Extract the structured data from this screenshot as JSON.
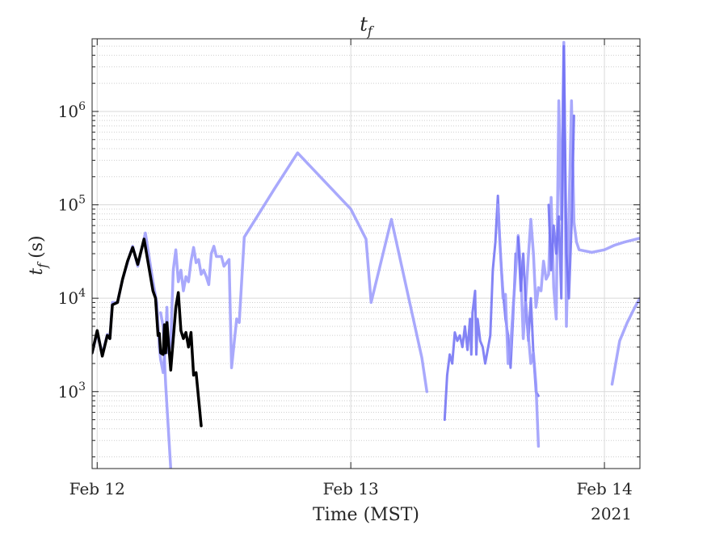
{
  "chart_data": {
    "type": "line",
    "title": "t",
    "title_subscript": "f",
    "xlabel": "Time (MST)",
    "ylabel_symbol": "t",
    "ylabel_subscript": "f",
    "ylabel_unit": "(s)",
    "x_ticks": [
      {
        "value": 0.0,
        "label": "Feb 12"
      },
      {
        "value": 1.0,
        "label": "Feb 13"
      },
      {
        "value": 2.0,
        "label": "Feb 14"
      }
    ],
    "x_tick_year": "2021",
    "xlim": [
      -0.02,
      2.14
    ],
    "y_scale": "log",
    "y_ticks": [
      {
        "value": 1000,
        "base": "10",
        "exp": "3"
      },
      {
        "value": 10000,
        "base": "10",
        "exp": "4"
      },
      {
        "value": 100000,
        "base": "10",
        "exp": "5"
      },
      {
        "value": 1000000,
        "base": "10",
        "exp": "6"
      }
    ],
    "ylim": [
      150,
      6000000
    ],
    "grid": true,
    "minor_grid": true,
    "colors": {
      "light_series": "#9a9afb",
      "medium_series": "#6f6ff3",
      "highlight_series": "#000000",
      "grid": "#d9d9d9",
      "axis": "#262626"
    },
    "series": [
      {
        "style": "light",
        "points": [
          [
            -0.02,
            2600
          ],
          [
            0.0,
            4300
          ],
          [
            0.02,
            2500
          ],
          [
            0.04,
            4100
          ],
          [
            0.05,
            3700
          ],
          [
            0.06,
            9000
          ],
          [
            0.08,
            9000
          ],
          [
            0.1,
            16000
          ],
          [
            0.13,
            30000
          ],
          [
            0.14,
            36000
          ],
          [
            0.16,
            22000
          ],
          [
            0.19,
            50000
          ],
          [
            0.22,
            15000
          ],
          [
            0.235,
            9000
          ],
          [
            0.245,
            3000
          ],
          [
            0.25,
            2200
          ],
          [
            0.26,
            1600
          ],
          [
            0.27,
            3500
          ],
          [
            0.275,
            8000
          ],
          [
            0.28,
            2600
          ],
          [
            0.29,
            3200
          ],
          [
            0.3,
            20000
          ],
          [
            0.31,
            33000
          ],
          [
            0.32,
            15000
          ],
          [
            0.33,
            20000
          ],
          [
            0.34,
            12000
          ],
          [
            0.35,
            17000
          ],
          [
            0.36,
            15000
          ],
          [
            0.37,
            25000
          ],
          [
            0.38,
            35000
          ],
          [
            0.39,
            24000
          ],
          [
            0.4,
            26000
          ],
          [
            0.41,
            18000
          ],
          [
            0.42,
            20000
          ],
          [
            0.43,
            17000
          ],
          [
            0.44,
            14000
          ],
          [
            0.45,
            30000
          ],
          [
            0.46,
            36000
          ],
          [
            0.47,
            28000
          ],
          [
            0.49,
            28000
          ],
          [
            0.5,
            22000
          ],
          [
            0.52,
            26000
          ],
          [
            0.53,
            1800
          ],
          [
            0.55,
            6000
          ],
          [
            0.56,
            5500
          ],
          [
            0.58,
            45000
          ],
          [
            0.7,
            150000
          ],
          [
            0.79,
            360000
          ],
          [
            1.0,
            90000
          ],
          [
            1.06,
            43000
          ],
          [
            1.08,
            9000
          ],
          [
            1.16,
            70000
          ],
          [
            1.28,
            2300
          ],
          [
            1.3,
            1000
          ]
        ]
      },
      {
        "style": "light",
        "points": [
          [
            0.25,
            7000
          ],
          [
            0.26,
            5000
          ],
          [
            0.27,
            1200
          ],
          [
            0.29,
            150
          ]
        ]
      },
      {
        "style": "medium",
        "points": [
          [
            1.37,
            500
          ],
          [
            1.38,
            1500
          ],
          [
            1.39,
            2500
          ],
          [
            1.4,
            2000
          ],
          [
            1.41,
            4300
          ],
          [
            1.42,
            3500
          ],
          [
            1.43,
            4000
          ],
          [
            1.44,
            3000
          ],
          [
            1.45,
            5000
          ],
          [
            1.46,
            2800
          ],
          [
            1.47,
            6000
          ],
          [
            1.475,
            2500
          ],
          [
            1.48,
            7000
          ],
          [
            1.49,
            12000
          ],
          [
            1.495,
            2500
          ],
          [
            1.5,
            6000
          ],
          [
            1.51,
            3500
          ],
          [
            1.52,
            3000
          ],
          [
            1.53,
            2000
          ],
          [
            1.55,
            4000
          ],
          [
            1.56,
            20000
          ],
          [
            1.57,
            40000
          ],
          [
            1.58,
            125000
          ],
          [
            1.59,
            30000
          ],
          [
            1.6,
            12000
          ],
          [
            1.61,
            6000
          ],
          [
            1.62,
            4000
          ],
          [
            1.63,
            1800
          ],
          [
            1.64,
            6500
          ],
          [
            1.65,
            30000
          ]
        ]
      },
      {
        "style": "light",
        "points": [
          [
            1.58,
            100000
          ],
          [
            1.6,
            10000
          ],
          [
            1.61,
            11000
          ],
          [
            1.62,
            2000
          ],
          [
            1.63,
            3000
          ],
          [
            1.64,
            8000
          ],
          [
            1.66,
            47000
          ],
          [
            1.67,
            20000
          ],
          [
            1.68,
            3700
          ],
          [
            1.7,
            28000
          ],
          [
            1.71,
            70000
          ],
          [
            1.72,
            30000
          ],
          [
            1.73,
            8000
          ],
          [
            1.74,
            13000
          ],
          [
            1.75,
            12000
          ],
          [
            1.76,
            25000
          ],
          [
            1.77,
            16000
          ],
          [
            1.78,
            18000
          ],
          [
            1.79,
            120000
          ],
          [
            1.8,
            13000
          ],
          [
            1.81,
            6000
          ],
          [
            1.82,
            1300000
          ],
          [
            1.83,
            70000
          ],
          [
            1.84,
            5500000
          ],
          [
            1.85,
            5000
          ],
          [
            1.87,
            1300000
          ],
          [
            1.88,
            65000
          ],
          [
            1.89,
            40000
          ],
          [
            1.9,
            33000
          ],
          [
            1.95,
            31000
          ],
          [
            2.0,
            33000
          ],
          [
            2.04,
            37000
          ],
          [
            2.08,
            40000
          ],
          [
            2.14,
            44000
          ]
        ]
      },
      {
        "style": "medium",
        "points": [
          [
            1.66,
            45000
          ],
          [
            1.67,
            12000
          ],
          [
            1.68,
            30000
          ],
          [
            1.69,
            8000
          ],
          [
            1.7,
            3500
          ],
          [
            1.71,
            10000
          ],
          [
            1.72,
            2500
          ],
          [
            1.73,
            1000
          ],
          [
            1.74,
            900
          ]
        ]
      },
      {
        "style": "light",
        "points": [
          [
            1.69,
            9000
          ],
          [
            1.7,
            4000
          ],
          [
            1.71,
            2000
          ],
          [
            1.72,
            2600
          ],
          [
            1.73,
            1200
          ],
          [
            1.74,
            260
          ]
        ]
      },
      {
        "style": "medium",
        "points": [
          [
            1.78,
            100000
          ],
          [
            1.79,
            20000
          ],
          [
            1.8,
            60000
          ],
          [
            1.81,
            30000
          ],
          [
            1.82,
            75000
          ],
          [
            1.83,
            10000
          ],
          [
            1.84,
            5000000
          ],
          [
            1.85,
            30000
          ],
          [
            1.86,
            10000
          ],
          [
            1.87,
            60000
          ],
          [
            1.88,
            900000
          ]
        ]
      },
      {
        "style": "light",
        "points": [
          [
            2.03,
            1200
          ],
          [
            2.06,
            3500
          ],
          [
            2.09,
            5500
          ],
          [
            2.12,
            8000
          ],
          [
            2.14,
            10000
          ]
        ]
      },
      {
        "style": "highlight",
        "points": [
          [
            -0.02,
            2600
          ],
          [
            0.0,
            4500
          ],
          [
            0.02,
            2400
          ],
          [
            0.04,
            4000
          ],
          [
            0.05,
            3700
          ],
          [
            0.06,
            8500
          ],
          [
            0.08,
            9000
          ],
          [
            0.1,
            16000
          ],
          [
            0.12,
            25000
          ],
          [
            0.14,
            35000
          ],
          [
            0.16,
            23000
          ],
          [
            0.185,
            43000
          ],
          [
            0.22,
            12000
          ],
          [
            0.23,
            10000
          ],
          [
            0.24,
            4000
          ],
          [
            0.245,
            4200
          ],
          [
            0.25,
            2600
          ],
          [
            0.26,
            2500
          ],
          [
            0.265,
            5200
          ],
          [
            0.27,
            2600
          ],
          [
            0.275,
            5500
          ],
          [
            0.29,
            1700
          ],
          [
            0.31,
            8000
          ],
          [
            0.32,
            11500
          ],
          [
            0.33,
            4500
          ],
          [
            0.34,
            3700
          ],
          [
            0.35,
            4300
          ],
          [
            0.36,
            3000
          ],
          [
            0.37,
            4300
          ],
          [
            0.38,
            1500
          ],
          [
            0.39,
            1600
          ],
          [
            0.41,
            430
          ]
        ]
      }
    ]
  }
}
